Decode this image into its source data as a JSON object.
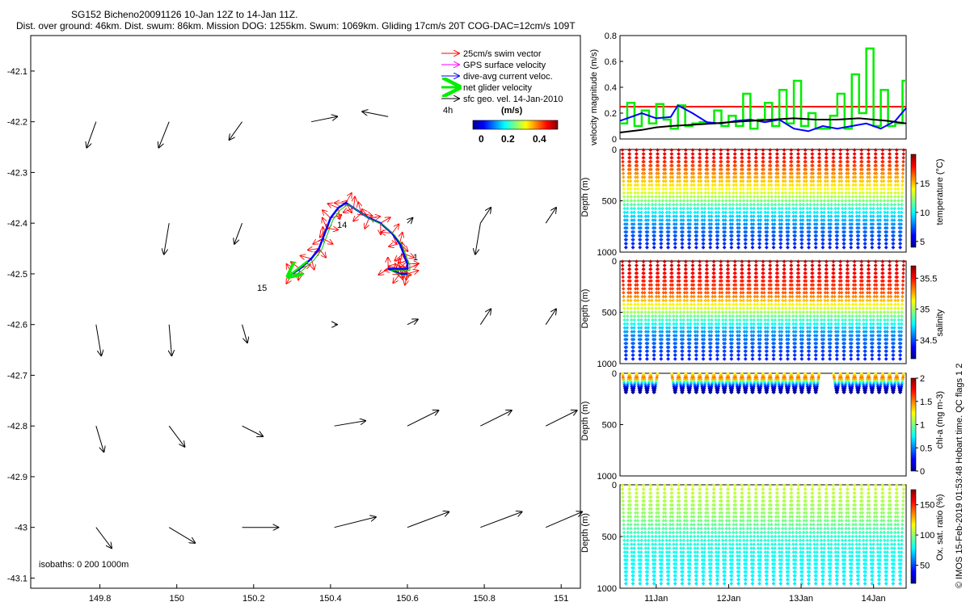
{
  "title_line1": "SG152 Bicheno20091126 10-Jan 12Z to 14-Jan 11Z.",
  "title_line2": "Dist. over ground: 46km. Dist. swum: 86km. Mission DOG: 1255km. Swum: 1069km. Gliding 17cm/s 20T COG-DAC=12cm/s 109T",
  "legend": [
    {
      "label": "25cm/s swim vector",
      "color": "#ff0000"
    },
    {
      "label": "GPS surface velocity",
      "color": "#ff00ff"
    },
    {
      "label": "dive-avg current veloc.",
      "color": "#0000ff"
    },
    {
      "label": "net glider velocity",
      "color": "#00ee00"
    },
    {
      "label": "sfc geo. vel. 14-Jan-2010",
      "color": "#000000"
    }
  ],
  "map_annotations": {
    "time_label": "4h",
    "day_labels": [
      "14",
      "15",
      "1"
    ]
  },
  "colorbar_map": {
    "unit": "(m/s)",
    "ticks": [
      "0",
      "0.2",
      "0.4"
    ]
  },
  "isobaths_label": "isobaths: 0   200  1000m",
  "side_note": "© IMOS 15-Feb-2019 01:53:48 Hobart time. QC flags 1  2",
  "chart_data": [
    {
      "type": "scatter",
      "name": "map",
      "x_ticks": [
        "149.8",
        "150",
        "150.2",
        "150.4",
        "150.6",
        "150.8",
        "151"
      ],
      "y_ticks": [
        "-42.1",
        "-42.2",
        "-42.3",
        "-42.4",
        "-42.5",
        "-42.6",
        "-42.7",
        "-42.8",
        "-42.9",
        "-43",
        "-43.1"
      ],
      "xlim": [
        149.62,
        151.05
      ],
      "ylim": [
        -43.12,
        -42.03
      ],
      "geo_vectors": [
        [
          149.79,
          -42.2,
          -0.018,
          -0.05
        ],
        [
          149.98,
          -42.2,
          -0.02,
          -0.05
        ],
        [
          150.17,
          -42.2,
          -0.025,
          -0.035
        ],
        [
          150.35,
          -42.2,
          0.05,
          0.01
        ],
        [
          150.55,
          -42.19,
          -0.05,
          0.01
        ],
        [
          150.79,
          -42.4,
          -0.01,
          -0.06
        ],
        [
          149.98,
          -42.4,
          -0.01,
          -0.06
        ],
        [
          150.17,
          -42.4,
          -0.015,
          -0.04
        ],
        [
          150.6,
          -42.4,
          0.01,
          0.01
        ],
        [
          150.79,
          -42.4,
          0.02,
          0.03
        ],
        [
          150.96,
          -42.4,
          0.02,
          0.03
        ],
        [
          149.79,
          -42.6,
          0.01,
          -0.06
        ],
        [
          149.98,
          -42.6,
          0.005,
          -0.06
        ],
        [
          150.17,
          -42.6,
          0.01,
          -0.035
        ],
        [
          150.41,
          -42.6,
          0.005,
          0.0
        ],
        [
          150.6,
          -42.6,
          0.02,
          0.01
        ],
        [
          150.79,
          -42.6,
          0.02,
          0.03
        ],
        [
          150.96,
          -42.6,
          0.02,
          0.03
        ],
        [
          149.79,
          -42.8,
          0.015,
          -0.05
        ],
        [
          149.98,
          -42.8,
          0.03,
          -0.04
        ],
        [
          150.17,
          -42.8,
          0.04,
          -0.02
        ],
        [
          150.41,
          -42.8,
          0.06,
          0.01
        ],
        [
          150.6,
          -42.8,
          0.06,
          0.03
        ],
        [
          150.79,
          -42.8,
          0.06,
          0.03
        ],
        [
          150.96,
          -42.8,
          0.06,
          0.03
        ],
        [
          149.79,
          -43.0,
          0.03,
          -0.04
        ],
        [
          149.98,
          -43.0,
          0.05,
          -0.03
        ],
        [
          150.17,
          -43.0,
          0.07,
          0.0
        ],
        [
          150.41,
          -43.0,
          0.08,
          0.02
        ],
        [
          150.6,
          -43.0,
          0.08,
          0.03
        ],
        [
          150.79,
          -43.0,
          0.08,
          0.03
        ],
        [
          150.96,
          -43.0,
          0.07,
          0.03
        ]
      ],
      "track_lon": [
        150.3,
        150.32,
        150.35,
        150.37,
        150.38,
        150.39,
        150.4,
        150.42,
        150.44,
        150.46,
        150.48,
        150.5,
        150.53,
        150.56,
        150.58,
        150.59,
        150.6,
        150.6,
        150.58,
        150.57,
        150.55,
        150.58,
        150.6
      ],
      "track_lat": [
        -42.5,
        -42.49,
        -42.47,
        -42.45,
        -42.43,
        -42.41,
        -42.39,
        -42.37,
        -42.36,
        -42.37,
        -42.38,
        -42.39,
        -42.4,
        -42.42,
        -42.44,
        -42.46,
        -42.48,
        -42.49,
        -42.49,
        -42.49,
        -42.49,
        -42.5,
        -42.5
      ]
    },
    {
      "type": "line",
      "name": "velocity",
      "ylabel": "velocity magnitude (m/s)",
      "ylim": [
        0,
        0.8
      ],
      "y_ticks": [
        "0",
        "0.2",
        "0.4",
        "0.6",
        "0.8"
      ],
      "xlim": [
        10.5,
        14.45
      ],
      "series": [
        {
          "color": "#ff0000",
          "x": [
            10.5,
            14.45
          ],
          "values": [
            0.25,
            0.25
          ]
        },
        {
          "color": "#00ee00",
          "x": [
            10.5,
            10.6,
            10.7,
            10.8,
            10.9,
            11.0,
            11.1,
            11.2,
            11.3,
            11.4,
            11.5,
            11.6,
            11.7,
            11.8,
            11.9,
            12.0,
            12.1,
            12.2,
            12.3,
            12.4,
            12.5,
            12.6,
            12.7,
            12.8,
            12.9,
            13.0,
            13.1,
            13.2,
            13.3,
            13.4,
            13.5,
            13.6,
            13.7,
            13.8,
            13.9,
            14.0,
            14.1,
            14.2,
            14.3,
            14.4
          ],
          "values": [
            0.12,
            0.28,
            0.1,
            0.22,
            0.12,
            0.27,
            0.15,
            0.08,
            0.26,
            0.1,
            0.12,
            0.13,
            0.12,
            0.22,
            0.1,
            0.18,
            0.1,
            0.35,
            0.08,
            0.15,
            0.28,
            0.1,
            0.38,
            0.12,
            0.45,
            0.1,
            0.2,
            0.08,
            0.08,
            0.18,
            0.35,
            0.08,
            0.5,
            0.2,
            0.7,
            0.1,
            0.38,
            0.1,
            0.12,
            0.45
          ]
        },
        {
          "color": "#0000ff",
          "x": [
            10.5,
            10.8,
            11.0,
            11.2,
            11.3,
            11.5,
            11.7,
            11.9,
            12.1,
            12.3,
            12.5,
            12.7,
            12.9,
            13.1,
            13.3,
            13.5,
            13.7,
            13.9,
            14.1,
            14.3,
            14.45
          ],
          "values": [
            0.14,
            0.2,
            0.16,
            0.17,
            0.26,
            0.2,
            0.13,
            0.12,
            0.14,
            0.15,
            0.13,
            0.15,
            0.08,
            0.06,
            0.1,
            0.08,
            0.1,
            0.12,
            0.08,
            0.14,
            0.24
          ]
        },
        {
          "color": "#000000",
          "x": [
            10.5,
            10.8,
            11.0,
            11.2,
            11.5,
            11.8,
            12.0,
            12.3,
            12.6,
            12.9,
            13.2,
            13.5,
            13.8,
            14.0,
            14.2,
            14.45
          ],
          "values": [
            0.05,
            0.07,
            0.09,
            0.1,
            0.11,
            0.12,
            0.13,
            0.14,
            0.15,
            0.16,
            0.15,
            0.15,
            0.16,
            0.15,
            0.14,
            0.12
          ]
        }
      ]
    },
    {
      "type": "scatter",
      "name": "temperature",
      "ylabel": "Depth (m)",
      "clabel": "temperature (°C)",
      "ylim": [
        0,
        1000
      ],
      "y_ticks": [
        "0",
        "500",
        "1000"
      ],
      "c_ticks": [
        "5",
        "10",
        "15"
      ],
      "crange": [
        4,
        20
      ],
      "profile": [
        [
          0,
          19
        ],
        [
          150,
          17
        ],
        [
          300,
          15
        ],
        [
          450,
          13
        ],
        [
          600,
          10
        ],
        [
          750,
          8
        ],
        [
          1000,
          6
        ]
      ]
    },
    {
      "type": "scatter",
      "name": "salinity",
      "ylabel": "Depth (m)",
      "clabel": "salinity",
      "ylim": [
        0,
        1000
      ],
      "y_ticks": [
        "0",
        "500",
        "1000"
      ],
      "c_ticks": [
        "34.5",
        "35",
        "35.5"
      ],
      "crange": [
        34.2,
        35.7
      ],
      "profile": [
        [
          0,
          35.6
        ],
        [
          300,
          35.4
        ],
        [
          500,
          35.0
        ],
        [
          700,
          34.6
        ],
        [
          1000,
          34.4
        ]
      ]
    },
    {
      "type": "scatter",
      "name": "chlorophyll",
      "ylabel": "Depth (m)",
      "clabel": "chl-a (mg m-3)",
      "ylim": [
        0,
        1000
      ],
      "y_ticks": [
        "0",
        "500",
        "1000"
      ],
      "c_ticks": [
        "0",
        "0.5",
        "1",
        "1.5",
        "2"
      ],
      "crange": [
        0,
        2
      ],
      "profile": [
        [
          0,
          1.2
        ],
        [
          50,
          1.6
        ],
        [
          100,
          0.6
        ],
        [
          150,
          0.1
        ],
        [
          200,
          0.05
        ]
      ]
    },
    {
      "type": "scatter",
      "name": "oxygen",
      "ylabel": "Depth (m)",
      "clabel": "Ox. sat. ratio (%)",
      "ylim": [
        0,
        1000
      ],
      "y_ticks": [
        "0",
        "500",
        "1000"
      ],
      "c_ticks": [
        "50",
        "100",
        "150"
      ],
      "crange": [
        20,
        175
      ],
      "profile": [
        [
          0,
          110
        ],
        [
          300,
          100
        ],
        [
          500,
          85
        ],
        [
          700,
          80
        ],
        [
          1000,
          75
        ]
      ]
    }
  ],
  "x_date_ticks": [
    "11Jan",
    "12Jan",
    "13Jan",
    "14Jan"
  ],
  "x_date_values": [
    11,
    12,
    13,
    14
  ],
  "colors": {
    "axis": "#000000",
    "cmap_low": "#00008f",
    "cmap_high": "#800000"
  }
}
